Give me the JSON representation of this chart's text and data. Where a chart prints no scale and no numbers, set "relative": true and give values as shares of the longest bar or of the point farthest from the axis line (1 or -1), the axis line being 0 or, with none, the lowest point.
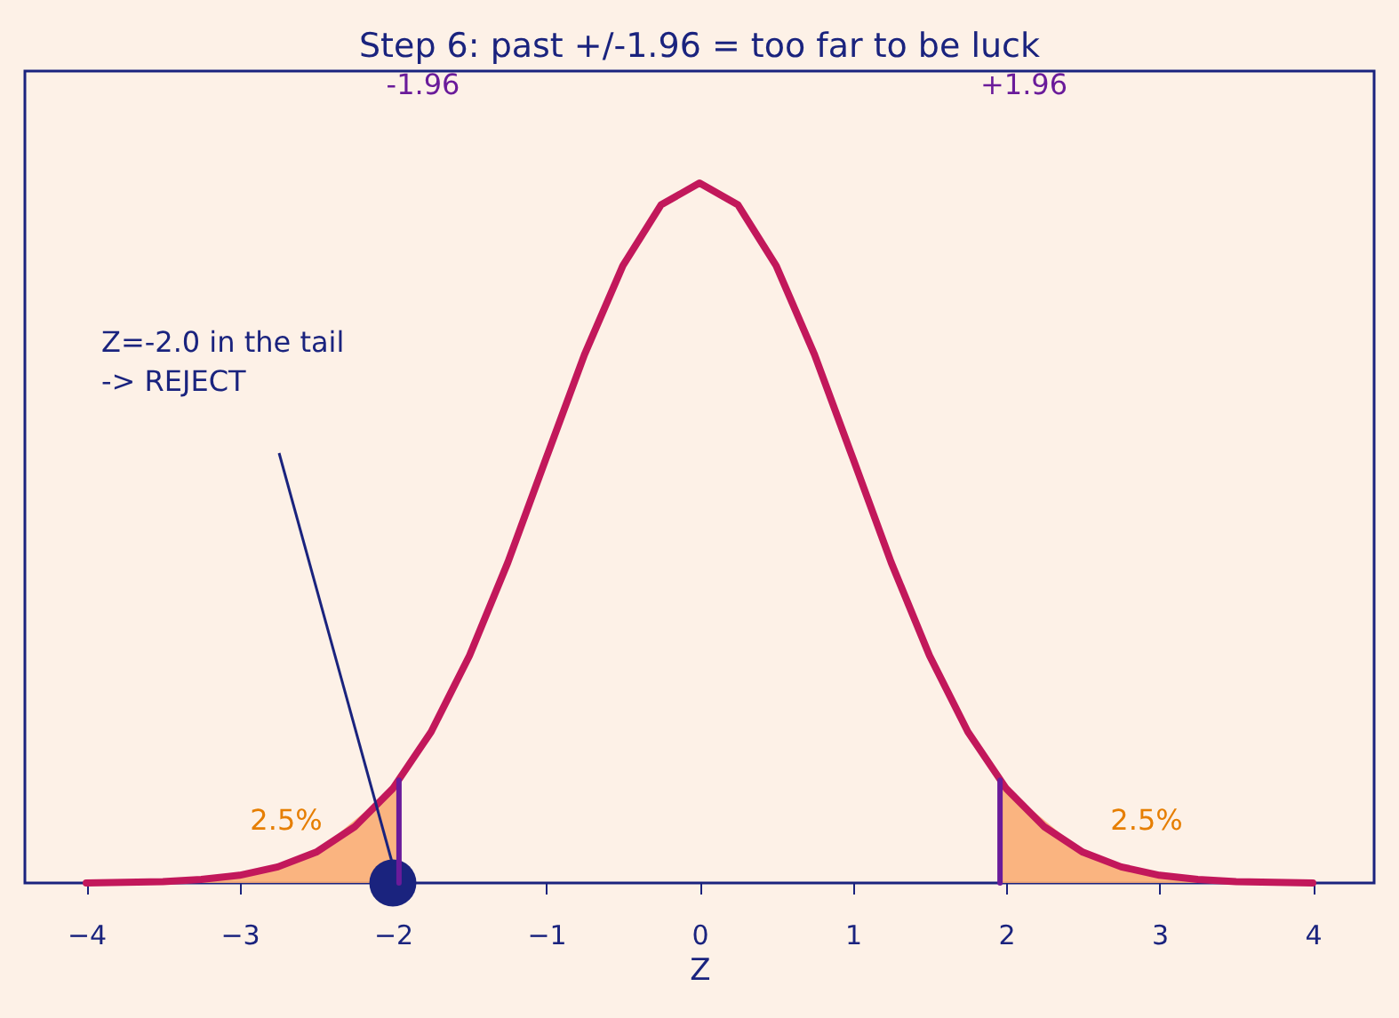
{
  "chart_data": {
    "type": "line",
    "title": "Step 6: past +/-1.96 = too far to be luck",
    "xlabel": "Z",
    "xlim": [
      -4.4,
      4.4
    ],
    "xticks": [
      -4,
      -3,
      -2,
      -1,
      0,
      1,
      2,
      3,
      4
    ],
    "tick_labels": "x",
    "relative": true,
    "grid": false,
    "legend": false,
    "series": [
      {
        "type": "area",
        "color": "#f9ad74",
        "x": [
          -4,
          -3.5,
          -3,
          -2.5,
          -2,
          -1.96
        ],
        "values": [
          0,
          0.002,
          0.011,
          0.044,
          0.135,
          0.147
        ]
      },
      {
        "type": "area",
        "color": "#f9ad74",
        "x": [
          1.96,
          2,
          2.5,
          3,
          3.5,
          4
        ],
        "values": [
          0.147,
          0.135,
          0.044,
          0.011,
          0.002,
          0
        ]
      },
      {
        "type": "line",
        "color": "#c2185b",
        "x": [
          -4,
          -3.75,
          -3.5,
          -3.25,
          -3,
          -2.75,
          -2.5,
          -2.25,
          -2,
          -1.75,
          -1.5,
          -1.25,
          -1,
          -0.75,
          -0.5,
          -0.25,
          0,
          0.25,
          0.5,
          0.75,
          1,
          1.25,
          1.5,
          1.75,
          2,
          2.25,
          2.5,
          2.75,
          3,
          3.25,
          3.5,
          3.75,
          4
        ],
        "values": [
          0,
          0.001,
          0.002,
          0.005,
          0.011,
          0.023,
          0.044,
          0.08,
          0.135,
          0.216,
          0.325,
          0.458,
          0.607,
          0.755,
          0.882,
          0.969,
          1,
          0.969,
          0.882,
          0.755,
          0.607,
          0.458,
          0.325,
          0.216,
          0.135,
          0.08,
          0.044,
          0.023,
          0.011,
          0.005,
          0.002,
          0.001,
          0
        ]
      },
      {
        "type": "scatter",
        "color": "#1a237e",
        "marker": "circle",
        "x": [
          -2
        ],
        "values": [
          0
        ]
      },
      {
        "type": "line",
        "color": "#6a1b9a",
        "x": [
          -1.96,
          -1.96
        ],
        "values": [
          0,
          0.147
        ]
      },
      {
        "type": "line",
        "color": "#6a1b9a",
        "x": [
          1.96,
          1.96
        ],
        "values": [
          0,
          0.147
        ]
      }
    ],
    "annotations": [
      "-1.96",
      "+1.96",
      "2.5%",
      "2.5%",
      "Z=-2.0 in the tail\n-> REJECT"
    ]
  }
}
